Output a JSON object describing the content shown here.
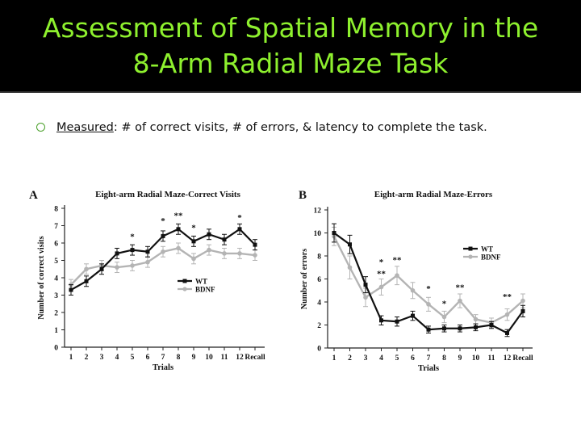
{
  "title": {
    "line1": "Assessment of Spatial Memory in the",
    "line2": "8-Arm Radial Maze Task"
  },
  "bullet": {
    "label": "Measured",
    "text": ": # of correct visits, # of errors, & latency to complete the task."
  },
  "colors": {
    "title": "#8ef02e",
    "wt": "#111111",
    "bdnf": "#b4b4b4"
  },
  "chart_data": [
    {
      "type": "line",
      "panel_label": "A",
      "title": "Eight-arm Radial Maze-Correct Visits",
      "xlabel": "Trials",
      "ylabel": "Number of correct visits",
      "categories": [
        "1",
        "2",
        "3",
        "4",
        "5",
        "6",
        "7",
        "8",
        "9",
        "10",
        "11",
        "12",
        "Recall"
      ],
      "ylim": [
        0,
        8
      ],
      "yticks": [
        "0",
        "1",
        "2",
        "3",
        "4",
        "5",
        "6",
        "7",
        "8"
      ],
      "legend_position": "center-right",
      "series": [
        {
          "name": "WT",
          "values": [
            3.3,
            3.8,
            4.5,
            5.4,
            5.6,
            5.5,
            6.4,
            6.8,
            6.1,
            6.5,
            6.2,
            6.8,
            5.9
          ],
          "errors": [
            0.3,
            0.3,
            0.3,
            0.3,
            0.3,
            0.3,
            0.3,
            0.3,
            0.3,
            0.3,
            0.3,
            0.3,
            0.3
          ]
        },
        {
          "name": "BDNF",
          "values": [
            3.6,
            4.5,
            4.7,
            4.6,
            4.7,
            4.9,
            5.5,
            5.7,
            5.1,
            5.6,
            5.4,
            5.4,
            5.3
          ],
          "errors": [
            0.3,
            0.3,
            0.3,
            0.3,
            0.3,
            0.3,
            0.3,
            0.3,
            0.3,
            0.3,
            0.3,
            0.3,
            0.3
          ]
        }
      ],
      "annotations": [
        {
          "category": "5",
          "text": "*",
          "y": 6.4
        },
        {
          "category": "7",
          "text": "*",
          "y": 7.3
        },
        {
          "category": "8",
          "text": "**",
          "y": 7.6
        },
        {
          "category": "9",
          "text": "*",
          "y": 6.9
        },
        {
          "category": "12",
          "text": "*",
          "y": 7.5
        }
      ]
    },
    {
      "type": "line",
      "panel_label": "B",
      "title": "Eight-arm Radial Maze-Errors",
      "xlabel": "Trials",
      "ylabel": "Number of errors",
      "categories": [
        "1",
        "2",
        "3",
        "4",
        "5",
        "6",
        "7",
        "8",
        "9",
        "10",
        "11",
        "12",
        "Recall"
      ],
      "ylim": [
        0,
        12
      ],
      "yticks": [
        "0",
        "2",
        "4",
        "6",
        "8",
        "10",
        "12"
      ],
      "legend_position": "top-right",
      "series": [
        {
          "name": "WT",
          "values": [
            10.0,
            9.0,
            5.5,
            2.4,
            2.3,
            2.8,
            1.6,
            1.7,
            1.7,
            1.8,
            2.0,
            1.3,
            3.2
          ],
          "errors": [
            0.8,
            0.8,
            0.7,
            0.4,
            0.4,
            0.4,
            0.3,
            0.3,
            0.3,
            0.3,
            0.3,
            0.3,
            0.5
          ]
        },
        {
          "name": "BDNF",
          "values": [
            9.7,
            7.0,
            4.4,
            5.3,
            6.3,
            5.0,
            3.8,
            2.7,
            4.1,
            2.5,
            2.2,
            2.9,
            4.1
          ],
          "errors": [
            0.8,
            1.0,
            0.8,
            0.7,
            0.8,
            0.7,
            0.6,
            0.5,
            0.6,
            0.4,
            0.4,
            0.5,
            0.6
          ]
        }
      ],
      "annotations": [
        {
          "category": "4",
          "text": "*",
          "y": 7.5
        },
        {
          "category": "4",
          "text": "**",
          "y": 6.5
        },
        {
          "category": "5",
          "text": "**",
          "y": 7.7
        },
        {
          "category": "7",
          "text": "*",
          "y": 5.2
        },
        {
          "category": "8",
          "text": "*",
          "y": 3.9
        },
        {
          "category": "9",
          "text": "**",
          "y": 5.3
        },
        {
          "category": "12",
          "text": "**",
          "y": 4.5
        }
      ]
    }
  ]
}
